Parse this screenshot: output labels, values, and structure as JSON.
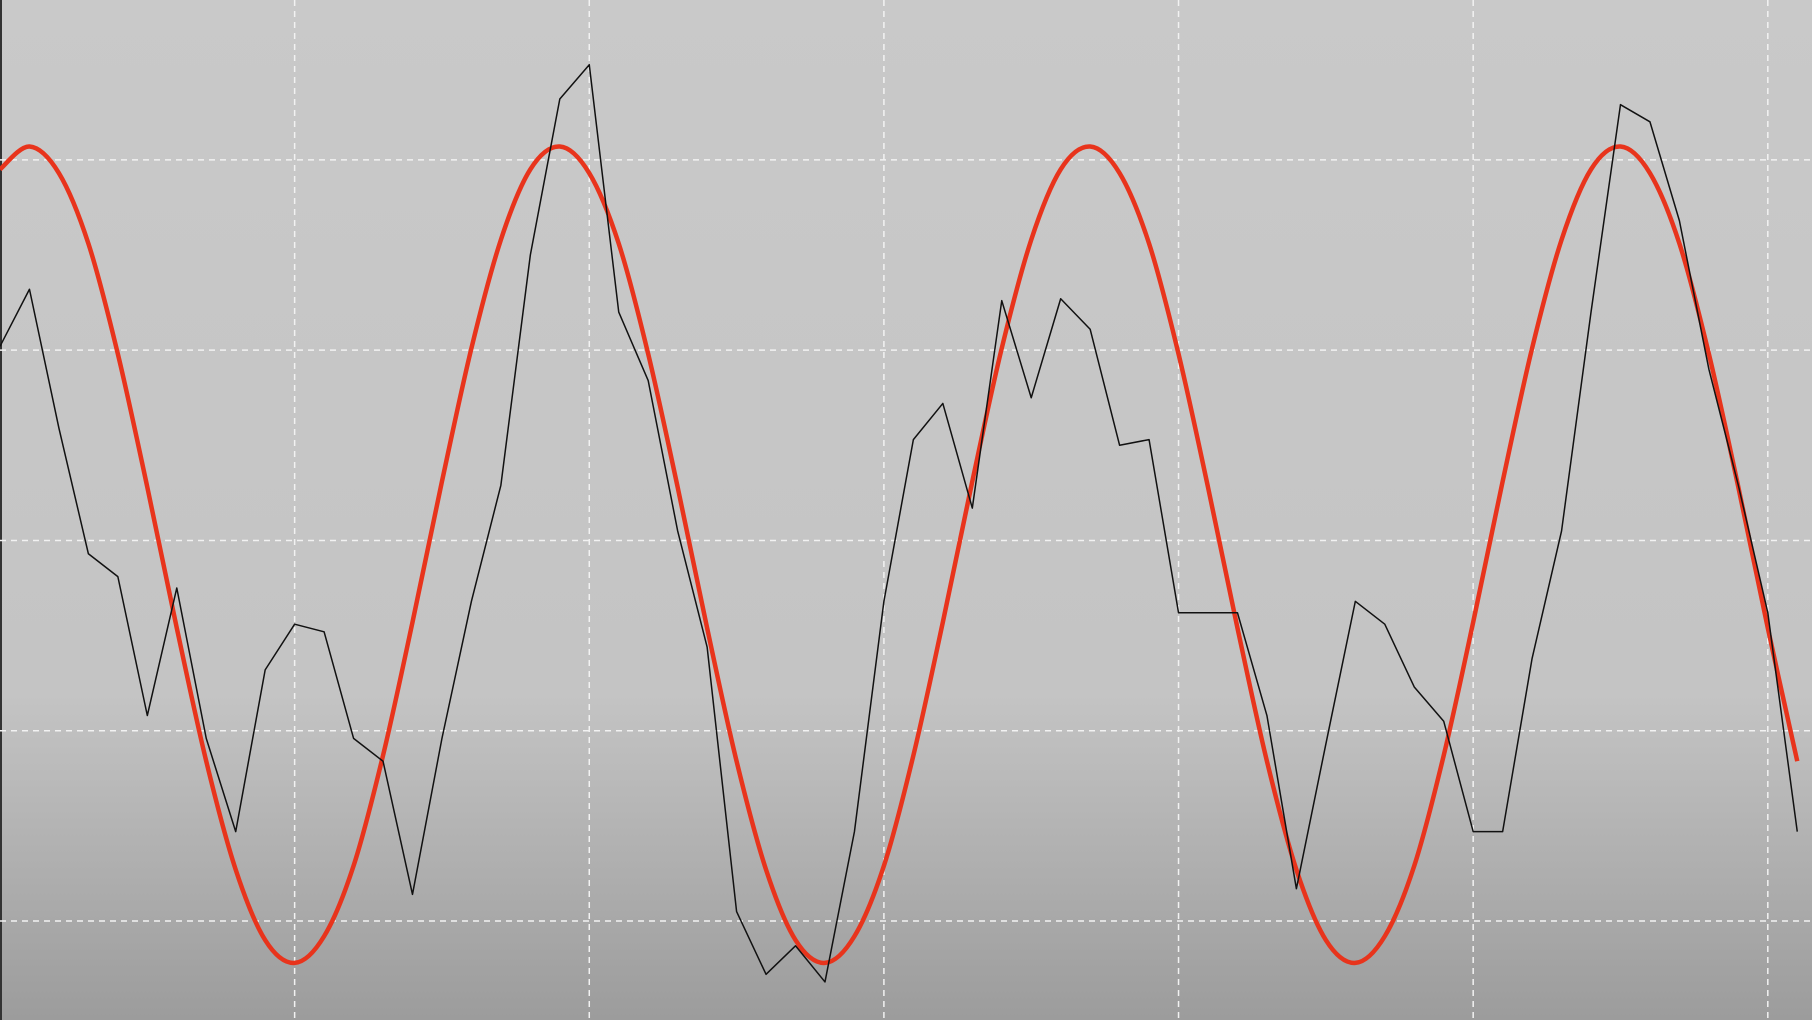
{
  "chart_data": {
    "type": "line",
    "x": [
      0,
      0.1,
      0.2,
      0.3,
      0.4,
      0.5,
      0.6,
      0.7,
      0.8,
      0.9,
      1,
      1.1,
      1.2,
      1.3,
      1.4,
      1.5,
      1.6,
      1.7,
      1.8,
      1.9,
      2,
      2.1,
      2.2,
      2.3,
      2.4,
      2.5,
      2.6,
      2.7,
      2.8,
      2.9,
      3,
      3.1,
      3.2,
      3.3,
      3.4,
      3.5,
      3.6,
      3.7,
      3.8,
      3.9,
      4,
      4.1,
      4.2,
      4.3,
      4.4,
      4.5,
      4.6,
      4.7,
      4.8,
      4.9,
      5,
      5.1,
      5.2,
      5.3,
      5.4,
      5.5,
      5.6,
      5.7,
      5.8,
      5.9,
      6,
      6.1
    ],
    "series": [
      {
        "color": "#e8341c",
        "width": 4.5,
        "smooth": true,
        "values": [
          3.95,
          4.07,
          3.93,
          3.56,
          2.98,
          2.28,
          1.54,
          0.84,
          0.27,
          -0.1,
          -0.22,
          -0.08,
          0.29,
          0.87,
          1.57,
          2.31,
          3.01,
          3.58,
          3.95,
          4.07,
          3.93,
          3.56,
          2.98,
          2.28,
          1.54,
          0.84,
          0.27,
          -0.1,
          -0.22,
          -0.08,
          0.29,
          0.87,
          1.57,
          2.31,
          3.01,
          3.58,
          3.95,
          4.07,
          3.93,
          3.56,
          2.98,
          2.28,
          1.54,
          0.84,
          0.27,
          -0.1,
          -0.22,
          -0.08,
          0.29,
          0.87,
          1.57,
          2.31,
          3.01,
          3.58,
          3.95,
          4.07,
          3.93,
          3.56,
          2.98,
          2.28,
          1.54,
          0.84
        ]
      },
      {
        "color": "#111111",
        "width": 1.5,
        "smooth": false,
        "values": [
          3.02,
          3.32,
          2.59,
          1.93,
          1.81,
          1.08,
          1.75,
          0.96,
          0.47,
          1.32,
          1.56,
          1.52,
          0.96,
          0.84,
          0.14,
          0.96,
          1.68,
          2.29,
          3.5,
          4.32,
          4.5,
          3.2,
          2.84,
          2.05,
          1.44,
          0.05,
          -0.28,
          -0.13,
          -0.32,
          0.47,
          1.68,
          2.53,
          2.72,
          2.17,
          3.26,
          2.75,
          3.27,
          3.11,
          2.5,
          2.53,
          1.62,
          1.62,
          1.62,
          1.08,
          0.17,
          0.93,
          1.68,
          1.56,
          1.23,
          1.05,
          0.47,
          0.47,
          1.38,
          2.05,
          3.2,
          4.29,
          4.2,
          3.68,
          2.9,
          2.29,
          1.62,
          0.47
        ]
      }
    ],
    "xlim": [
      0,
      6.15
    ],
    "ylim": [
      -0.52,
      4.84
    ],
    "xticks": [
      1,
      2,
      3,
      4,
      5,
      6
    ],
    "yticks": [
      0,
      1,
      2,
      3,
      4
    ],
    "grid": true
  }
}
